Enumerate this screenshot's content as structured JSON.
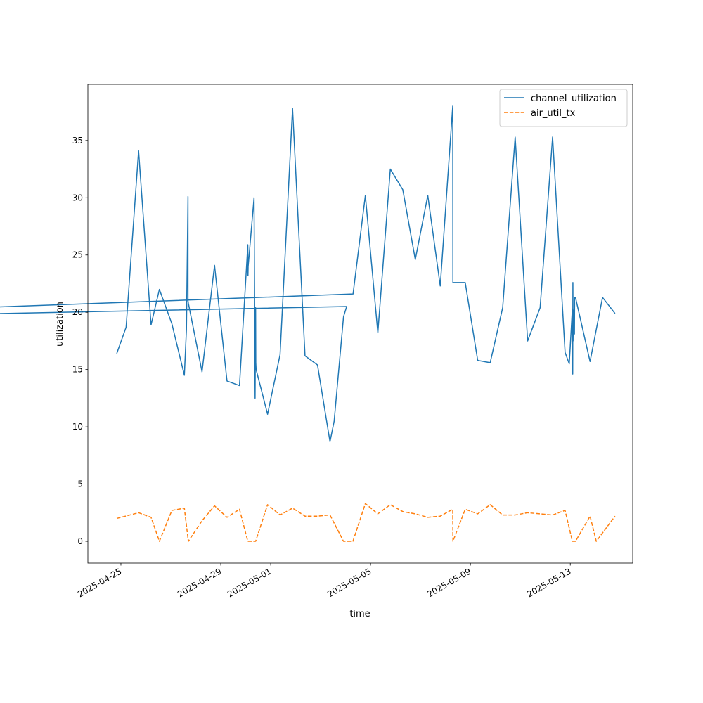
{
  "chart_data": {
    "type": "line",
    "xlabel": "time",
    "ylabel": "utilization",
    "x_is_date": true,
    "xlim": [
      "2025-04-23T16:15",
      "2025-05-15T12:00"
    ],
    "ylim": [
      -1.9,
      39.9
    ],
    "x_ticks": [
      "2025-04-25",
      "2025-04-29",
      "2025-05-01",
      "2025-05-05",
      "2025-05-09",
      "2025-05-13"
    ],
    "y_ticks": [
      0,
      5,
      10,
      15,
      20,
      25,
      30,
      35
    ],
    "y_tick_labels": [
      "0",
      "5",
      "10",
      "15",
      "20",
      "25",
      "30",
      "35"
    ],
    "grid": false,
    "legend_position": "top-right",
    "series": [
      {
        "name": "channel_utilization",
        "color": "#1f77b4",
        "dash": "solid",
        "x": [
          "2025-04-24T20:00",
          "2025-04-25T05:00",
          "2025-04-25T17:00",
          "2025-04-26T05:00",
          "2025-04-26T13:00",
          "2025-04-27T01:00",
          "2025-04-27T13:00",
          "2025-04-27T15:00",
          "2025-04-27T16:30",
          "2025-04-27T16:30",
          "2025-04-27T16:50",
          "2025-04-28T06:00",
          "2025-04-28T18:00",
          "2025-04-29T06:00",
          "2025-04-29T18:00",
          "2025-04-30T02:00",
          "2025-04-30T02:10",
          "2025-04-30T02:20",
          "2025-04-30T08:00",
          "2025-04-30T08:30",
          "2025-04-30T09:00",
          "2025-04-30T09:30",
          "2025-04-30T09:40",
          "2025-04-30T10:00",
          "2025-04-30T21:00",
          "2025-05-01T09:00",
          "2025-05-01T21:00",
          "2025-05-02T09:00",
          "2025-05-02T21:00",
          "2025-05-03T09:00",
          "2025-05-03T13:00",
          "2025-05-03T22:00",
          "2025-05-04T01:00",
          "2025-04-04T07:00",
          "2025-05-04T07:00",
          "2025-05-04T07:10",
          "2025-05-04T19:00",
          "2025-05-05T07:00",
          "2025-05-05T19:00",
          "2025-05-06T07:00",
          "2025-05-06T19:00",
          "2025-05-07T07:00",
          "2025-05-07T19:00",
          "2025-05-08T07:00",
          "2025-05-08T07:10",
          "2025-05-08T19:00",
          "2025-05-09T07:00",
          "2025-05-09T19:00",
          "2025-05-10T07:00",
          "2025-05-10T19:00",
          "2025-05-11T07:00",
          "2025-05-11T19:00",
          "2025-05-12T07:00",
          "2025-05-12T19:00",
          "2025-05-12T23:00",
          "2025-05-13T02:00",
          "2025-05-13T02:10",
          "2025-05-13T02:20",
          "2025-05-13T02:30",
          "2025-05-13T02:40",
          "2025-05-13T03:00",
          "2025-05-13T04:00",
          "2025-05-13T04:10",
          "2025-05-13T05:00",
          "2025-05-13T19:00",
          "2025-05-14T07:00",
          "2025-05-14T19:00"
        ],
        "values": [
          16.4,
          18.7,
          34.1,
          18.9,
          22.0,
          19.0,
          14.5,
          18.5,
          30.1,
          21.0,
          20.8,
          14.8,
          24.1,
          14.0,
          13.6,
          25.9,
          23.2,
          24.0,
          30.0,
          21.5,
          12.5,
          20.4,
          15.6,
          15.0,
          11.1,
          16.3,
          37.8,
          16.2,
          15.4,
          8.7,
          10.5,
          19.6,
          20.5,
          19.2,
          21.6,
          21.6,
          30.2,
          18.2,
          32.5,
          30.7,
          24.6,
          30.2,
          22.3,
          38.0,
          22.6,
          22.6,
          15.8,
          15.6,
          20.4,
          35.3,
          17.5,
          20.4,
          35.3,
          16.5,
          15.5,
          20.3,
          19.5,
          14.6,
          22.6,
          17.5,
          20.2,
          18.1,
          21.3,
          21.3,
          15.7,
          21.3,
          19.9
        ]
      },
      {
        "name": "air_util_tx",
        "color": "#ff7f0e",
        "dash": "dashed",
        "x": [
          "2025-04-24T20:00",
          "2025-04-25T17:00",
          "2025-04-26T05:00",
          "2025-04-26T13:00",
          "2025-04-27T01:00",
          "2025-04-27T13:00",
          "2025-04-27T16:50",
          "2025-04-28T06:00",
          "2025-04-28T18:00",
          "2025-04-29T06:00",
          "2025-04-29T18:00",
          "2025-04-30T02:00",
          "2025-04-30T09:30",
          "2025-04-30T21:00",
          "2025-05-01T09:00",
          "2025-05-01T21:00",
          "2025-05-02T09:00",
          "2025-05-02T21:00",
          "2025-05-03T09:00",
          "2025-05-03T22:00",
          "2025-05-04T07:00",
          "2025-05-04T19:00",
          "2025-05-05T07:00",
          "2025-05-05T19:00",
          "2025-05-06T07:00",
          "2025-05-06T19:00",
          "2025-05-07T07:00",
          "2025-05-07T19:00",
          "2025-05-08T07:00",
          "2025-05-08T07:10",
          "2025-05-08T19:00",
          "2025-05-09T07:00",
          "2025-05-09T19:00",
          "2025-05-10T07:00",
          "2025-05-10T19:00",
          "2025-05-11T07:00",
          "2025-05-11T19:00",
          "2025-05-12T07:00",
          "2025-05-12T19:00",
          "2025-05-13T02:00",
          "2025-05-13T05:00",
          "2025-05-13T19:00",
          "2025-05-14T01:00",
          "2025-05-14T19:00"
        ],
        "values": [
          2.0,
          2.5,
          2.1,
          0.0,
          2.7,
          2.9,
          0.0,
          1.8,
          3.1,
          2.1,
          2.8,
          0.0,
          0.0,
          3.2,
          2.3,
          2.9,
          2.2,
          2.2,
          2.3,
          0.0,
          0.0,
          3.3,
          2.4,
          3.2,
          2.6,
          2.4,
          2.1,
          2.2,
          2.8,
          0.0,
          2.8,
          2.4,
          3.2,
          2.3,
          2.3,
          2.5,
          2.4,
          2.3,
          2.7,
          0.0,
          0.0,
          2.2,
          0.0,
          2.2
        ]
      }
    ]
  }
}
